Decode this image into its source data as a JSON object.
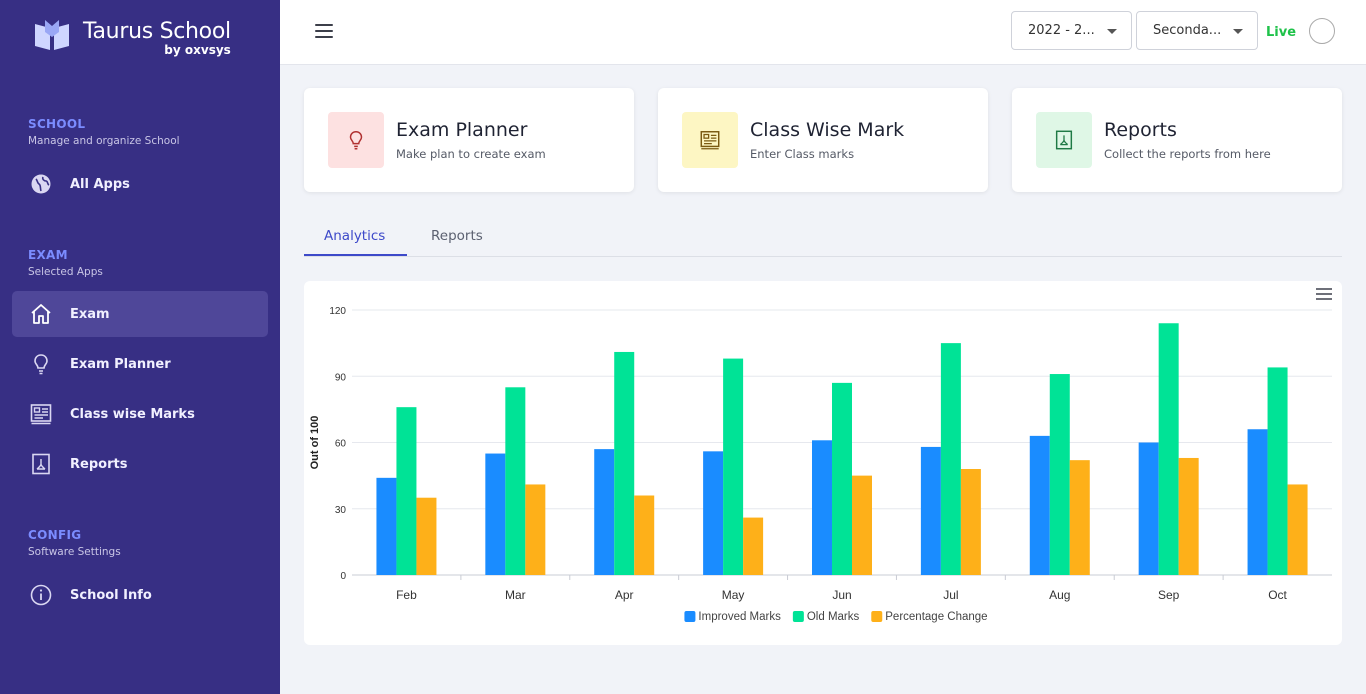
{
  "brand": {
    "title": "Taurus School",
    "subtitle": "by oxvsys"
  },
  "sidebar": {
    "sections": [
      {
        "title": "SCHOOL",
        "subtitle": "Manage and organize School"
      },
      {
        "title": "EXAM",
        "subtitle": "Selected Apps"
      },
      {
        "title": "CONFIG",
        "subtitle": "Software Settings"
      }
    ],
    "items": [
      {
        "label": "All Apps",
        "icon": "globe-icon"
      },
      {
        "label": "Exam",
        "icon": "home-icon",
        "active": true
      },
      {
        "label": "Exam Planner",
        "icon": "lightbulb-icon"
      },
      {
        "label": "Class wise Marks",
        "icon": "marks-icon"
      },
      {
        "label": "Reports",
        "icon": "pdf-icon"
      },
      {
        "label": "School Info",
        "icon": "info-icon"
      }
    ]
  },
  "header": {
    "year_select": "2022 - 2...",
    "level_select": "Seconda...",
    "live_label": "Live"
  },
  "cards": [
    {
      "title": "Exam Planner",
      "subtitle": "Make plan to create exam",
      "icon": "lightbulb-icon",
      "bg": "#fde1e1",
      "color": "#c0392b"
    },
    {
      "title": "Class Wise Mark",
      "subtitle": "Enter Class marks",
      "icon": "marks-icon",
      "bg": "#fdf6c3",
      "color": "#7a5a12"
    },
    {
      "title": "Reports",
      "subtitle": "Collect the reports from here",
      "icon": "pdf-icon",
      "bg": "#dff7e6",
      "color": "#1f7a45"
    }
  ],
  "tabs": [
    {
      "label": "Analytics",
      "active": true
    },
    {
      "label": "Reports",
      "active": false
    }
  ],
  "colors": {
    "sidebar": "#372f84",
    "accent": "#3d49c9",
    "live": "#1fc24a"
  },
  "chart_data": {
    "type": "bar",
    "categories": [
      "Feb",
      "Mar",
      "Apr",
      "May",
      "Jun",
      "Jul",
      "Aug",
      "Sep",
      "Oct"
    ],
    "series": [
      {
        "name": "Improved Marks",
        "color": "#1a8cff",
        "values": [
          44,
          55,
          57,
          56,
          61,
          58,
          63,
          60,
          66
        ]
      },
      {
        "name": "Old Marks",
        "color": "#00e396",
        "values": [
          76,
          85,
          101,
          98,
          87,
          105,
          91,
          114,
          94
        ]
      },
      {
        "name": "Percentage Change",
        "color": "#feb019",
        "values": [
          35,
          41,
          36,
          26,
          45,
          48,
          52,
          53,
          41
        ]
      }
    ],
    "ylabel": "Out of 100",
    "ylim": [
      0,
      120
    ],
    "yticks": [
      0,
      30,
      60,
      90,
      120
    ],
    "grid": true,
    "legend": "bottom"
  }
}
